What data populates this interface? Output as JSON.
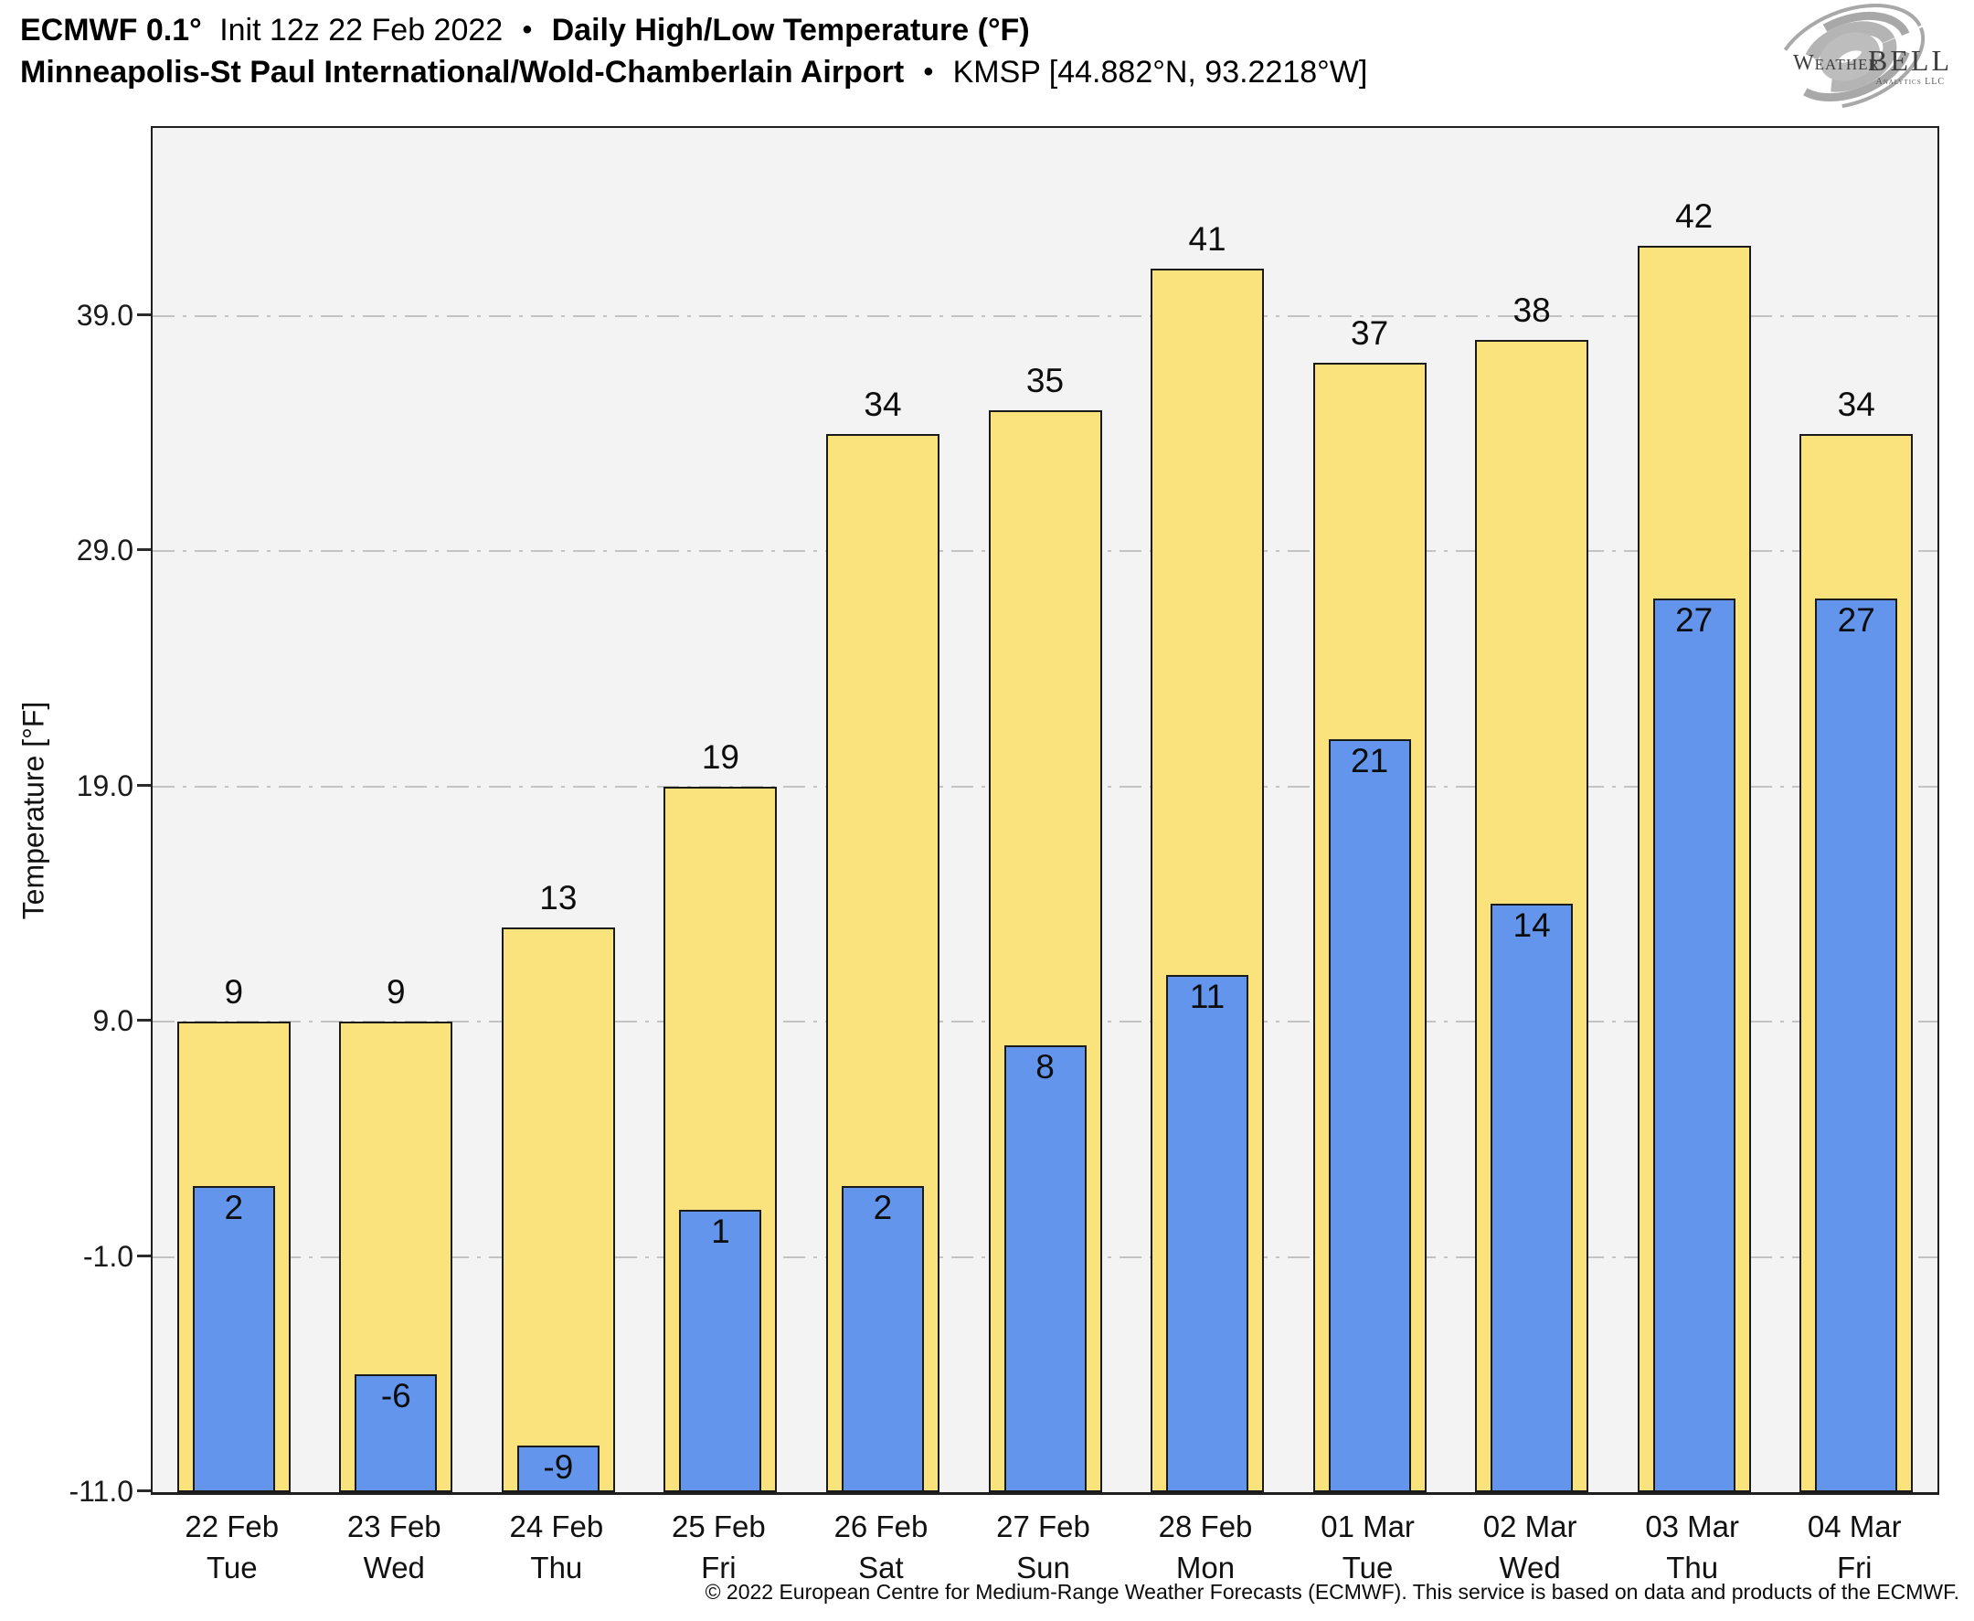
{
  "header": {
    "line1": {
      "model_bold": "ECMWF 0.1°",
      "init_regular": "Init 12z 22 Feb 2022",
      "separator": "•",
      "product_bold": "Daily High/Low Temperature (°F)"
    },
    "line2": {
      "station_bold": "Minneapolis-St Paul International/Wold-Chamberlain Airport",
      "separator": "•",
      "station_id_regular": "KMSP [44.882°N, 93.2218°W]"
    }
  },
  "logo": {
    "weather": "Weather",
    "bell": "BELL",
    "analytics": "Analytics LLC"
  },
  "chart_data": {
    "type": "bar",
    "title": "ECMWF 0.1° Init 12z 22 Feb 2022 • Daily High/Low Temperature (°F)",
    "subtitle": "Minneapolis-St Paul International/Wold-Chamberlain Airport • KMSP [44.882°N, 93.2218°W]",
    "categories": [
      {
        "date": "22 Feb",
        "day": "Tue"
      },
      {
        "date": "23 Feb",
        "day": "Wed"
      },
      {
        "date": "24 Feb",
        "day": "Thu"
      },
      {
        "date": "25 Feb",
        "day": "Fri"
      },
      {
        "date": "26 Feb",
        "day": "Sat"
      },
      {
        "date": "27 Feb",
        "day": "Sun"
      },
      {
        "date": "28 Feb",
        "day": "Mon"
      },
      {
        "date": "01 Mar",
        "day": "Tue"
      },
      {
        "date": "02 Mar",
        "day": "Wed"
      },
      {
        "date": "03 Mar",
        "day": "Thu"
      },
      {
        "date": "04 Mar",
        "day": "Fri"
      }
    ],
    "series": [
      {
        "name": "Daily High",
        "color": "#FAE37D",
        "border": "#1a1a1a",
        "values": [
          9,
          9,
          13,
          19,
          34,
          35,
          41,
          37,
          38,
          42,
          34
        ]
      },
      {
        "name": "Daily Low",
        "color": "#6495ED",
        "border": "#1a1a1a",
        "values": [
          2,
          -6,
          -9,
          1,
          2,
          8,
          11,
          21,
          14,
          27,
          27
        ]
      }
    ],
    "xlabel": "",
    "ylabel": "Temperature [°F]",
    "yticks": [
      39,
      29,
      19,
      9,
      -1,
      -11
    ],
    "ytick_labels": [
      "39.0",
      "29.0",
      "19.0",
      "9.0",
      "-1.0",
      "-11.0"
    ],
    "ylim": [
      -11,
      47
    ],
    "grid": {
      "axis": "y",
      "style": "dash-dot",
      "color": "#c3c3c3"
    },
    "plot_background": "#f3f3f3",
    "legend_position": "none",
    "bar_label_position": {
      "high": "above-bar",
      "low": "inside-bar-top"
    }
  },
  "footer": {
    "copyright": "© 2022 European Centre for Medium-Range Weather Forecasts (ECMWF). This service is based on data and products of the ECMWF."
  }
}
